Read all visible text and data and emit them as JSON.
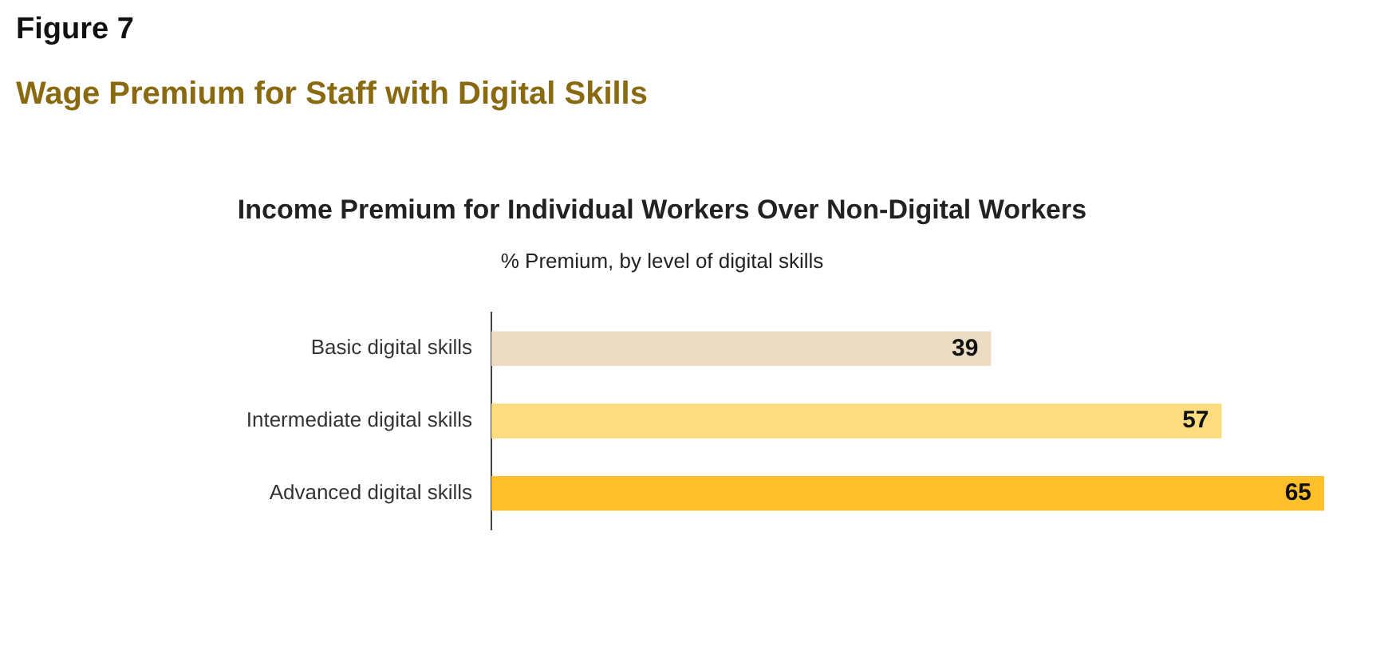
{
  "chart_data": {
    "type": "bar",
    "orientation": "horizontal",
    "title": "Income Premium for Individual Workers Over Non-Digital Workers",
    "subtitle": "% Premium, by level of digital skills",
    "annotations": [
      "Figure 7",
      "Wage Premium for Staff with Digital Skills"
    ],
    "categories": [
      "Basic digital skills",
      "Intermediate digital skills",
      "Advanced digital skills"
    ],
    "values": [
      39,
      57,
      65
    ],
    "colors": [
      "#ecdcc3",
      "#fddc80",
      "#fec02a"
    ],
    "xlim": [
      0,
      65
    ],
    "tick_labels": "y",
    "grid": false,
    "legend": false,
    "data_labels": true
  }
}
